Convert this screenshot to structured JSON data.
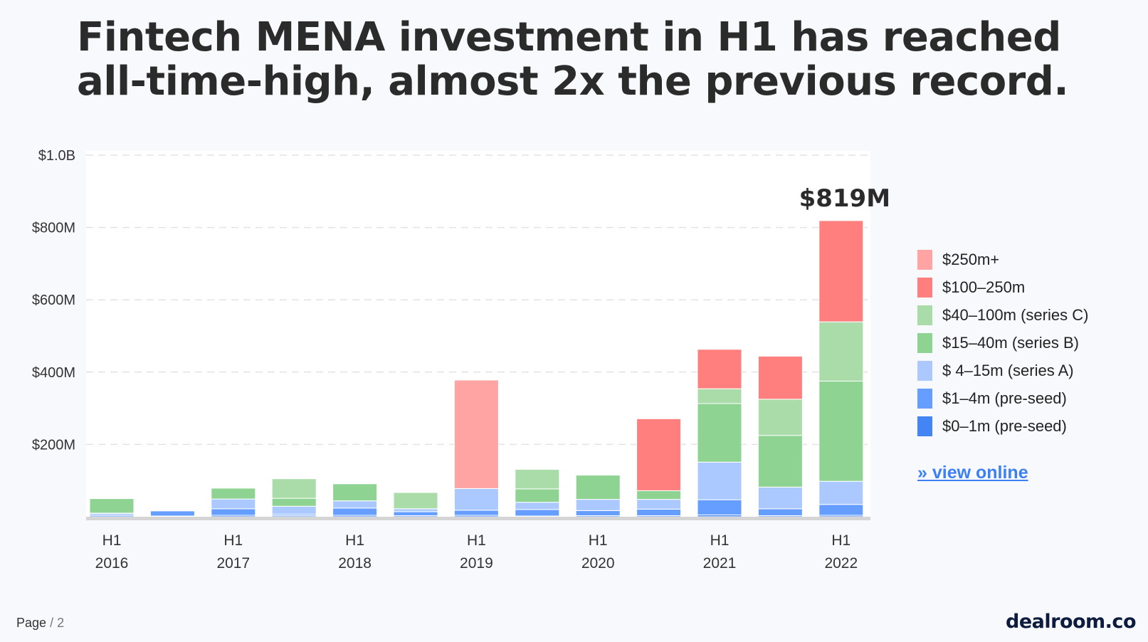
{
  "title": {
    "line1": "Fintech MENA investment in H1 has reached",
    "line2": "all-time-high, almost 2x the previous record."
  },
  "chart_data": {
    "type": "bar",
    "stacked": true,
    "categories": [
      [
        "H1",
        "2016"
      ],
      [
        "",
        ""
      ],
      [
        "H1",
        "2017"
      ],
      [
        "",
        ""
      ],
      [
        "H1",
        "2018"
      ],
      [
        "",
        ""
      ],
      [
        "H1",
        "2019"
      ],
      [
        "",
        ""
      ],
      [
        "H1",
        "2020"
      ],
      [
        "",
        ""
      ],
      [
        "H1",
        "2021"
      ],
      [
        "",
        ""
      ],
      [
        "H1",
        "2022"
      ]
    ],
    "y_ticks": [
      {
        "value": 200,
        "label": "$200M"
      },
      {
        "value": 400,
        "label": "$400M"
      },
      {
        "value": 600,
        "label": "$600M"
      },
      {
        "value": 800,
        "label": "$800M"
      },
      {
        "value": 1000,
        "label": "$1.0B"
      }
    ],
    "ylim": [
      0,
      1000
    ],
    "y_unit": "$M",
    "grid": true,
    "legend_position": "right",
    "annotation": {
      "category_index": 12,
      "text": "$819M"
    },
    "series": [
      {
        "name": "$0–1m (pre-seed)",
        "color": "#4485f5",
        "values": [
          3,
          2,
          4,
          3,
          4,
          3,
          4,
          2,
          3,
          3,
          5,
          3,
          4
        ]
      },
      {
        "name": "$1–4m (pre-seed)",
        "color": "#669eff",
        "values": [
          4,
          14,
          18,
          4,
          20,
          11,
          14,
          18,
          14,
          18,
          42,
          19,
          30
        ]
      },
      {
        "name": "$ 4–15m (series A)",
        "color": "#abc8ff",
        "values": [
          3,
          0,
          27,
          22,
          20,
          8,
          60,
          20,
          31,
          27,
          104,
          60,
          64
        ]
      },
      {
        "name": "$15–40m (series B)",
        "color": "#8ed392",
        "values": [
          40,
          0,
          30,
          22,
          47,
          0,
          0,
          37,
          67,
          24,
          162,
          143,
          277
        ]
      },
      {
        "name": "$40–100m (series C)",
        "color": "#a9dca9",
        "values": [
          0,
          0,
          0,
          54,
          0,
          45,
          0,
          54,
          0,
          0,
          41,
          100,
          164
        ]
      },
      {
        "name": "$100–250m",
        "color": "#ff7f7f",
        "values": [
          0,
          0,
          0,
          0,
          0,
          0,
          0,
          0,
          0,
          199,
          109,
          119,
          280
        ]
      },
      {
        "name": "$250m+",
        "color": "#ffa3a3",
        "values": [
          0,
          0,
          0,
          0,
          0,
          0,
          300,
          0,
          0,
          0,
          0,
          0,
          0
        ]
      }
    ]
  },
  "legend": {
    "items": [
      {
        "label": "$250m+",
        "color": "#ffa3a3"
      },
      {
        "label": "$100–250m",
        "color": "#ff7f7f"
      },
      {
        "label": "$40–100m (series C)",
        "color": "#a9dca9"
      },
      {
        "label": "$15–40m (series B)",
        "color": "#8ed392"
      },
      {
        "label": "$ 4–15m (series A)",
        "color": "#abc8ff"
      },
      {
        "label": "$1–4m (pre-seed)",
        "color": "#669eff"
      },
      {
        "label": "$0–1m (pre-seed)",
        "color": "#4485f5"
      }
    ],
    "view_online": "» view online"
  },
  "footer": {
    "page_label": "Page",
    "page_sep": "/",
    "page_number": "2",
    "logo": "dealroom.co"
  }
}
